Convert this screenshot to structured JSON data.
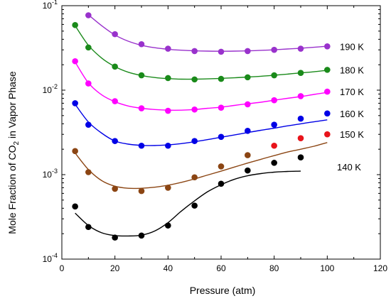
{
  "chart_data": {
    "type": "scatter",
    "xlabel": "Pressure (atm)",
    "ylabel": {
      "prefix": "Mole Fraction of CO",
      "sub": "2",
      "suffix": " in Vapor Phase"
    },
    "xlim": [
      0,
      120
    ],
    "ylim": [
      0.0001,
      0.1
    ],
    "yscale": "log",
    "xticks": [
      0,
      20,
      40,
      60,
      80,
      100,
      120
    ],
    "xtick_labels": [
      "0",
      "20",
      "40",
      "60",
      "80",
      "100",
      "120"
    ],
    "yticks": [
      {
        "value": 0.1,
        "base": "10",
        "exp": "-1"
      },
      {
        "value": 0.01,
        "base": "10",
        "exp": "-2"
      },
      {
        "value": 0.001,
        "base": "10",
        "exp": "-3"
      },
      {
        "value": 0.0001,
        "base": "10",
        "exp": "-4"
      }
    ],
    "grid": false,
    "series": [
      {
        "name": "140 K",
        "color": "#000000",
        "x": [
          5,
          10,
          20,
          30,
          40,
          50,
          60,
          70,
          80,
          90
        ],
        "y": [
          0.00042,
          0.00024,
          0.00018,
          0.00019,
          0.00025,
          0.00043,
          0.00078,
          0.00112,
          0.00138,
          0.0016
        ],
        "fit_x": [
          5,
          10,
          15,
          20,
          25,
          30,
          35,
          40,
          45,
          50,
          55,
          60,
          65,
          70,
          75,
          80,
          85,
          90
        ],
        "fit_y": [
          0.00035,
          0.00025,
          0.000205,
          0.00019,
          0.000188,
          0.000192,
          0.000215,
          0.00027,
          0.00037,
          0.00049,
          0.00063,
          0.00076,
          0.00088,
          0.00097,
          0.00103,
          0.00107,
          0.00109,
          0.0011
        ]
      },
      {
        "name": "150 K",
        "color": "#8b4513",
        "x": [
          5,
          10,
          20,
          30,
          40,
          50,
          60,
          70,
          80,
          90,
          100
        ],
        "y": [
          0.0019,
          0.00107,
          0.00068,
          0.00064,
          0.0007,
          0.00093,
          0.00125,
          0.0017,
          0.0022,
          0.0027,
          0.003
        ],
        "point_colors": [
          "#8b4513",
          "#8b4513",
          "#8b4513",
          "#8b4513",
          "#8b4513",
          "#8b4513",
          "#8b4513",
          "#8b4513",
          "#e8141b",
          "#e8141b",
          "#e8141b"
        ],
        "fit_x": [
          5,
          10,
          15,
          20,
          25,
          30,
          35,
          40,
          45,
          50,
          55,
          60,
          65,
          70,
          75,
          80,
          85,
          90,
          95,
          100
        ],
        "fit_y": [
          0.0018,
          0.00115,
          0.00085,
          0.00073,
          0.00069,
          0.00069,
          0.00071,
          0.00075,
          0.00081,
          0.00089,
          0.00099,
          0.0011,
          0.00123,
          0.00137,
          0.00152,
          0.00168,
          0.00185,
          0.002,
          0.00217,
          0.0024
        ]
      },
      {
        "name": "160 K",
        "color": "#0000e6",
        "x": [
          5,
          10,
          20,
          30,
          40,
          50,
          60,
          70,
          80,
          90,
          100
        ],
        "y": [
          0.007,
          0.0039,
          0.0025,
          0.0022,
          0.0022,
          0.0025,
          0.0028,
          0.0033,
          0.0039,
          0.0046,
          0.0053
        ],
        "fit_x": [
          5,
          10,
          15,
          20,
          25,
          30,
          35,
          40,
          45,
          50,
          55,
          60,
          65,
          70,
          75,
          80,
          85,
          90,
          95,
          100
        ],
        "fit_y": [
          0.0068,
          0.0042,
          0.0031,
          0.0025,
          0.0023,
          0.00222,
          0.00221,
          0.00225,
          0.00233,
          0.00245,
          0.0026,
          0.00277,
          0.00295,
          0.00315,
          0.00335,
          0.00355,
          0.00378,
          0.004,
          0.00422,
          0.00445
        ]
      },
      {
        "name": "170 K",
        "color": "#ff00ff",
        "x": [
          5,
          10,
          20,
          30,
          40,
          50,
          60,
          70,
          80,
          90,
          100
        ],
        "y": [
          0.022,
          0.012,
          0.0074,
          0.0061,
          0.0057,
          0.0059,
          0.0062,
          0.0068,
          0.0076,
          0.0085,
          0.0096
        ],
        "fit_x": [
          5,
          10,
          15,
          20,
          25,
          30,
          35,
          40,
          45,
          50,
          55,
          60,
          65,
          70,
          75,
          80,
          85,
          90,
          95,
          100
        ],
        "fit_y": [
          0.0215,
          0.0122,
          0.0088,
          0.0073,
          0.0065,
          0.0061,
          0.0059,
          0.0058,
          0.0058,
          0.0059,
          0.0061,
          0.0063,
          0.0066,
          0.0069,
          0.0072,
          0.0076,
          0.008,
          0.0084,
          0.0089,
          0.0094
        ]
      },
      {
        "name": "180 K",
        "color": "#1a8a1a",
        "x": [
          5,
          10,
          20,
          30,
          40,
          50,
          60,
          70,
          80,
          90,
          100
        ],
        "y": [
          0.059,
          0.032,
          0.019,
          0.015,
          0.0139,
          0.0134,
          0.0136,
          0.0142,
          0.015,
          0.016,
          0.0174
        ],
        "fit_x": [
          5,
          10,
          15,
          20,
          25,
          30,
          35,
          40,
          45,
          50,
          55,
          60,
          65,
          70,
          75,
          80,
          85,
          90,
          95,
          100
        ],
        "fit_y": [
          0.058,
          0.034,
          0.024,
          0.019,
          0.0163,
          0.0149,
          0.0141,
          0.0137,
          0.0135,
          0.0135,
          0.0136,
          0.0138,
          0.014,
          0.0143,
          0.0146,
          0.015,
          0.0155,
          0.016,
          0.0165,
          0.0172
        ]
      },
      {
        "name": "190 K",
        "color": "#9932cc",
        "x": [
          10,
          20,
          30,
          40,
          50,
          60,
          70,
          80,
          90,
          100
        ],
        "y": [
          0.077,
          0.046,
          0.035,
          0.031,
          0.029,
          0.0285,
          0.029,
          0.03,
          0.031,
          0.033
        ],
        "fit_x": [
          10,
          15,
          20,
          25,
          30,
          35,
          40,
          45,
          50,
          55,
          60,
          65,
          70,
          75,
          80,
          85,
          90,
          95,
          100
        ],
        "fit_y": [
          0.078,
          0.058,
          0.045,
          0.038,
          0.034,
          0.0318,
          0.0305,
          0.0297,
          0.0292,
          0.029,
          0.0289,
          0.029,
          0.0292,
          0.0296,
          0.0301,
          0.0307,
          0.0314,
          0.0322,
          0.0331
        ]
      }
    ]
  }
}
